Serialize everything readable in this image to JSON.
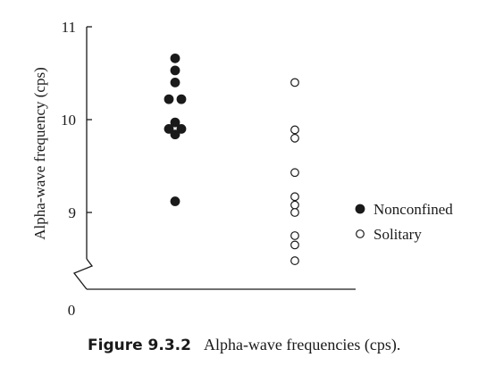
{
  "chart_data": {
    "type": "scatter",
    "title": "",
    "xlabel": "",
    "ylabel": "Alpha-wave frequency (cps)",
    "ylim": [
      0,
      11
    ],
    "axis_break": true,
    "y_ticks": [
      {
        "value": 11,
        "label": "11"
      },
      {
        "value": 10,
        "label": "10"
      },
      {
        "value": 9,
        "label": "9"
      },
      {
        "value": 0,
        "label": "0"
      }
    ],
    "legend_position": "right",
    "series": [
      {
        "name": "Nonconfined",
        "marker": "filled-circle",
        "values": [
          10.66,
          10.53,
          10.4,
          10.22,
          10.22,
          9.97,
          9.9,
          9.9,
          9.84,
          9.12
        ]
      },
      {
        "name": "Solitary",
        "marker": "open-circle",
        "values": [
          10.4,
          9.89,
          9.8,
          9.43,
          9.17,
          9.08,
          9.0,
          8.75,
          8.65,
          8.48
        ]
      }
    ]
  },
  "caption": {
    "label": "Figure 9.3.2",
    "text": "Alpha-wave frequencies (cps)."
  },
  "colors": {
    "ink": "#1a1a1a",
    "background": "#ffffff"
  }
}
